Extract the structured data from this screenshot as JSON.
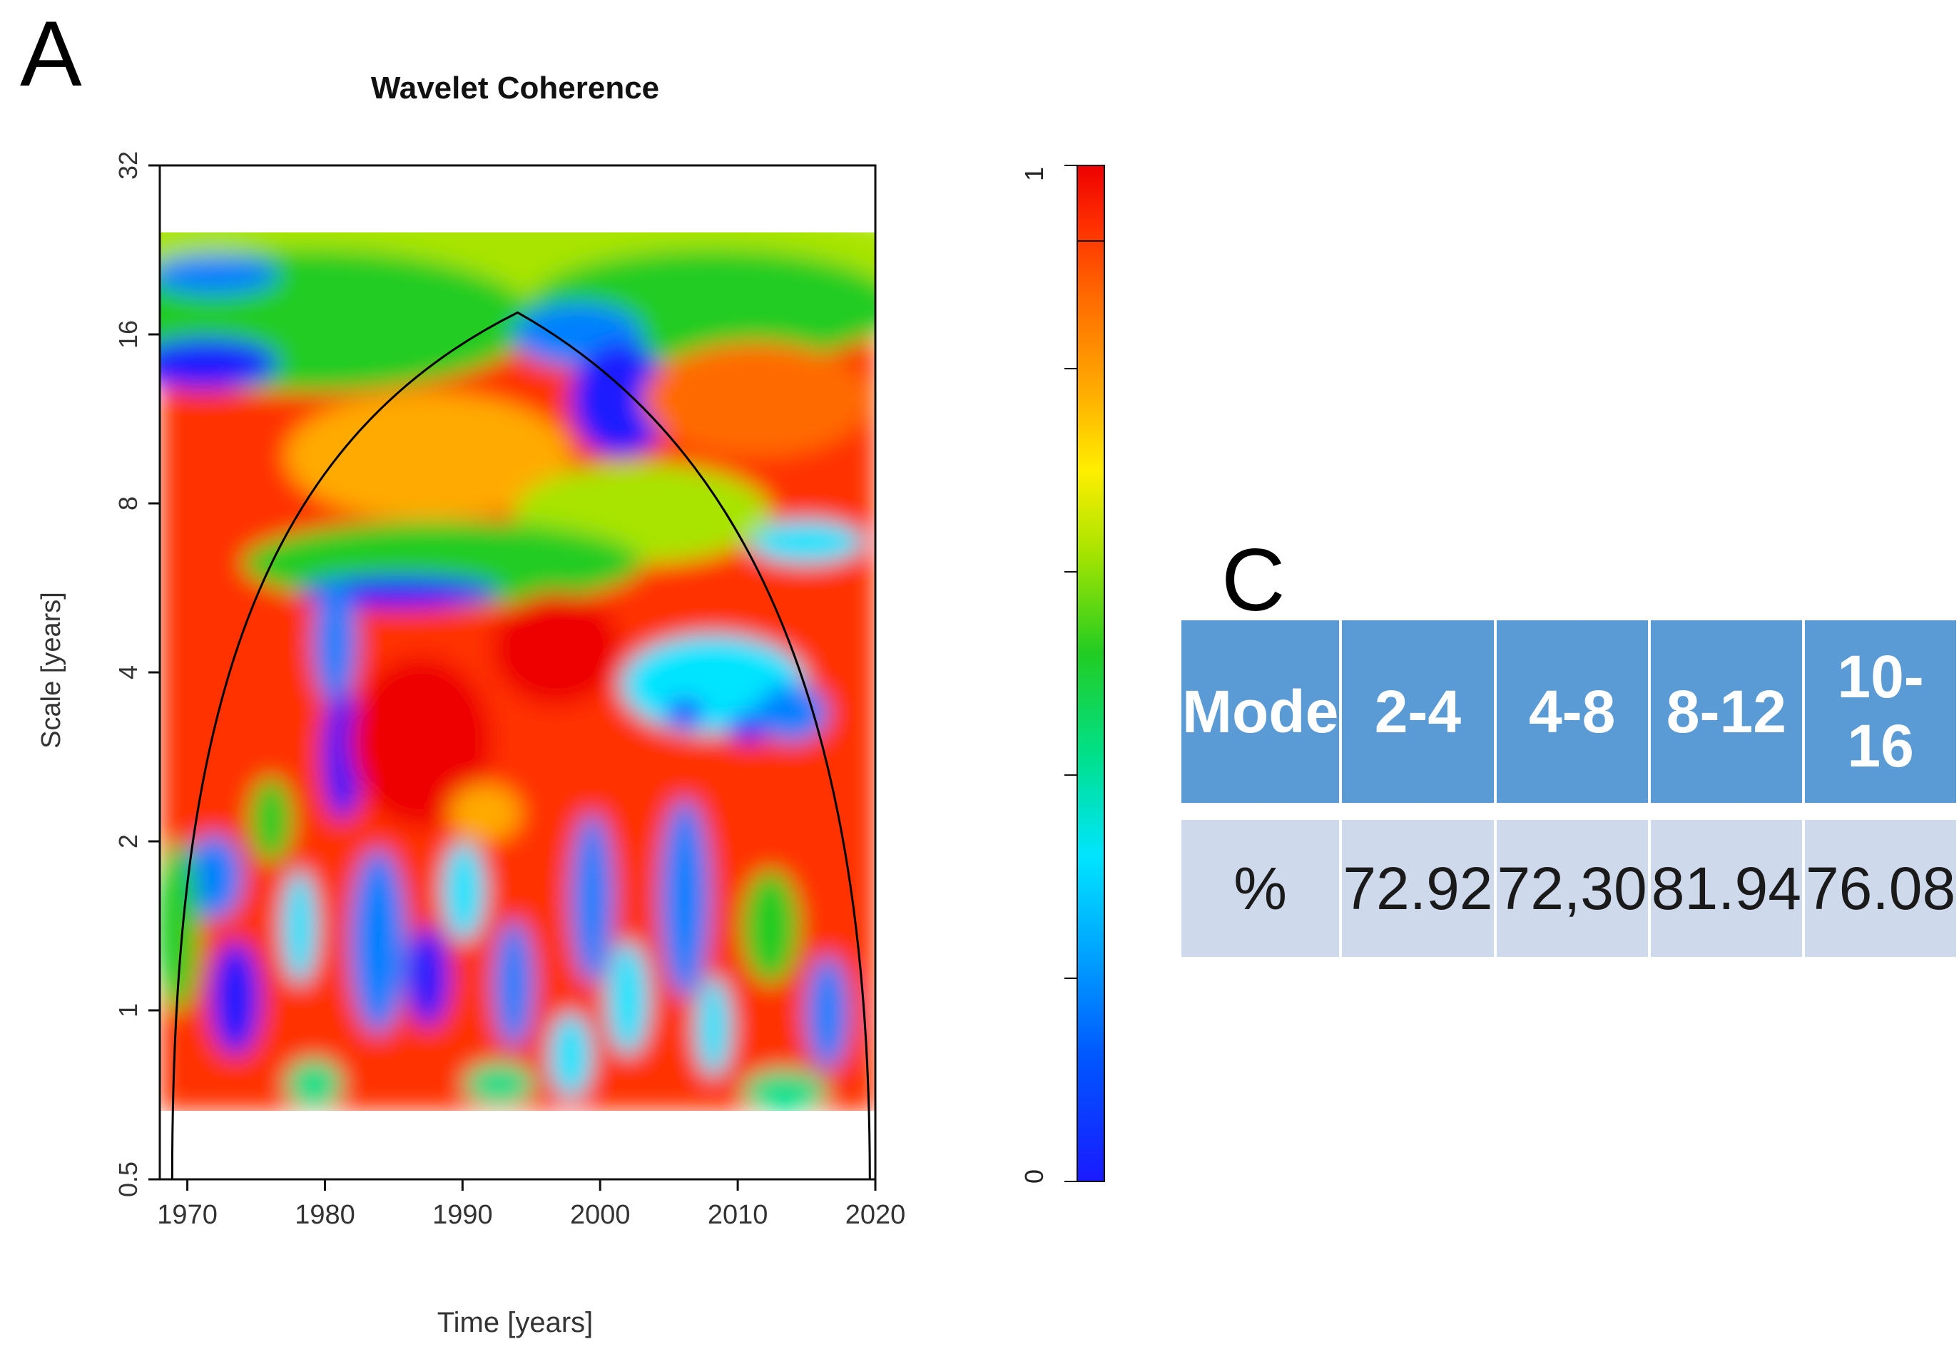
{
  "panel_labels": {
    "a": "A",
    "c": "C"
  },
  "chart_data": {
    "type": "heatmap",
    "title": "Wavelet Coherence",
    "xlabel": "Time [years]",
    "ylabel": "Scale [years]",
    "xlim": [
      1968,
      2020
    ],
    "x_ticks": [
      1970,
      1980,
      1990,
      2000,
      2010,
      2020
    ],
    "ylim": [
      0.5,
      32
    ],
    "y_scale": "log2",
    "y_ticks": [
      "0.5",
      "1",
      "2",
      "4",
      "8",
      "16",
      "32"
    ],
    "colorbar": {
      "range": [
        0,
        1
      ],
      "tick_labels": [
        "0",
        "1"
      ],
      "colors": [
        "#1a1aff",
        "#0080ff",
        "#00e5ff",
        "#00e08a",
        "#22cc22",
        "#a8e400",
        "#ffee00",
        "#ffaa00",
        "#ff6a00",
        "#ff3000",
        "#ee0000"
      ]
    },
    "cone_of_influence": {
      "peak_year": 1994,
      "peak_scale": 17.5
    },
    "grid": false,
    "legend": "colorbar-right"
  },
  "table": {
    "header": [
      "Mode",
      "2-4",
      "4-8",
      "8-12",
      "10-16"
    ],
    "row": [
      "%",
      "72.92",
      "72,30",
      "81.94",
      "76.08"
    ]
  }
}
